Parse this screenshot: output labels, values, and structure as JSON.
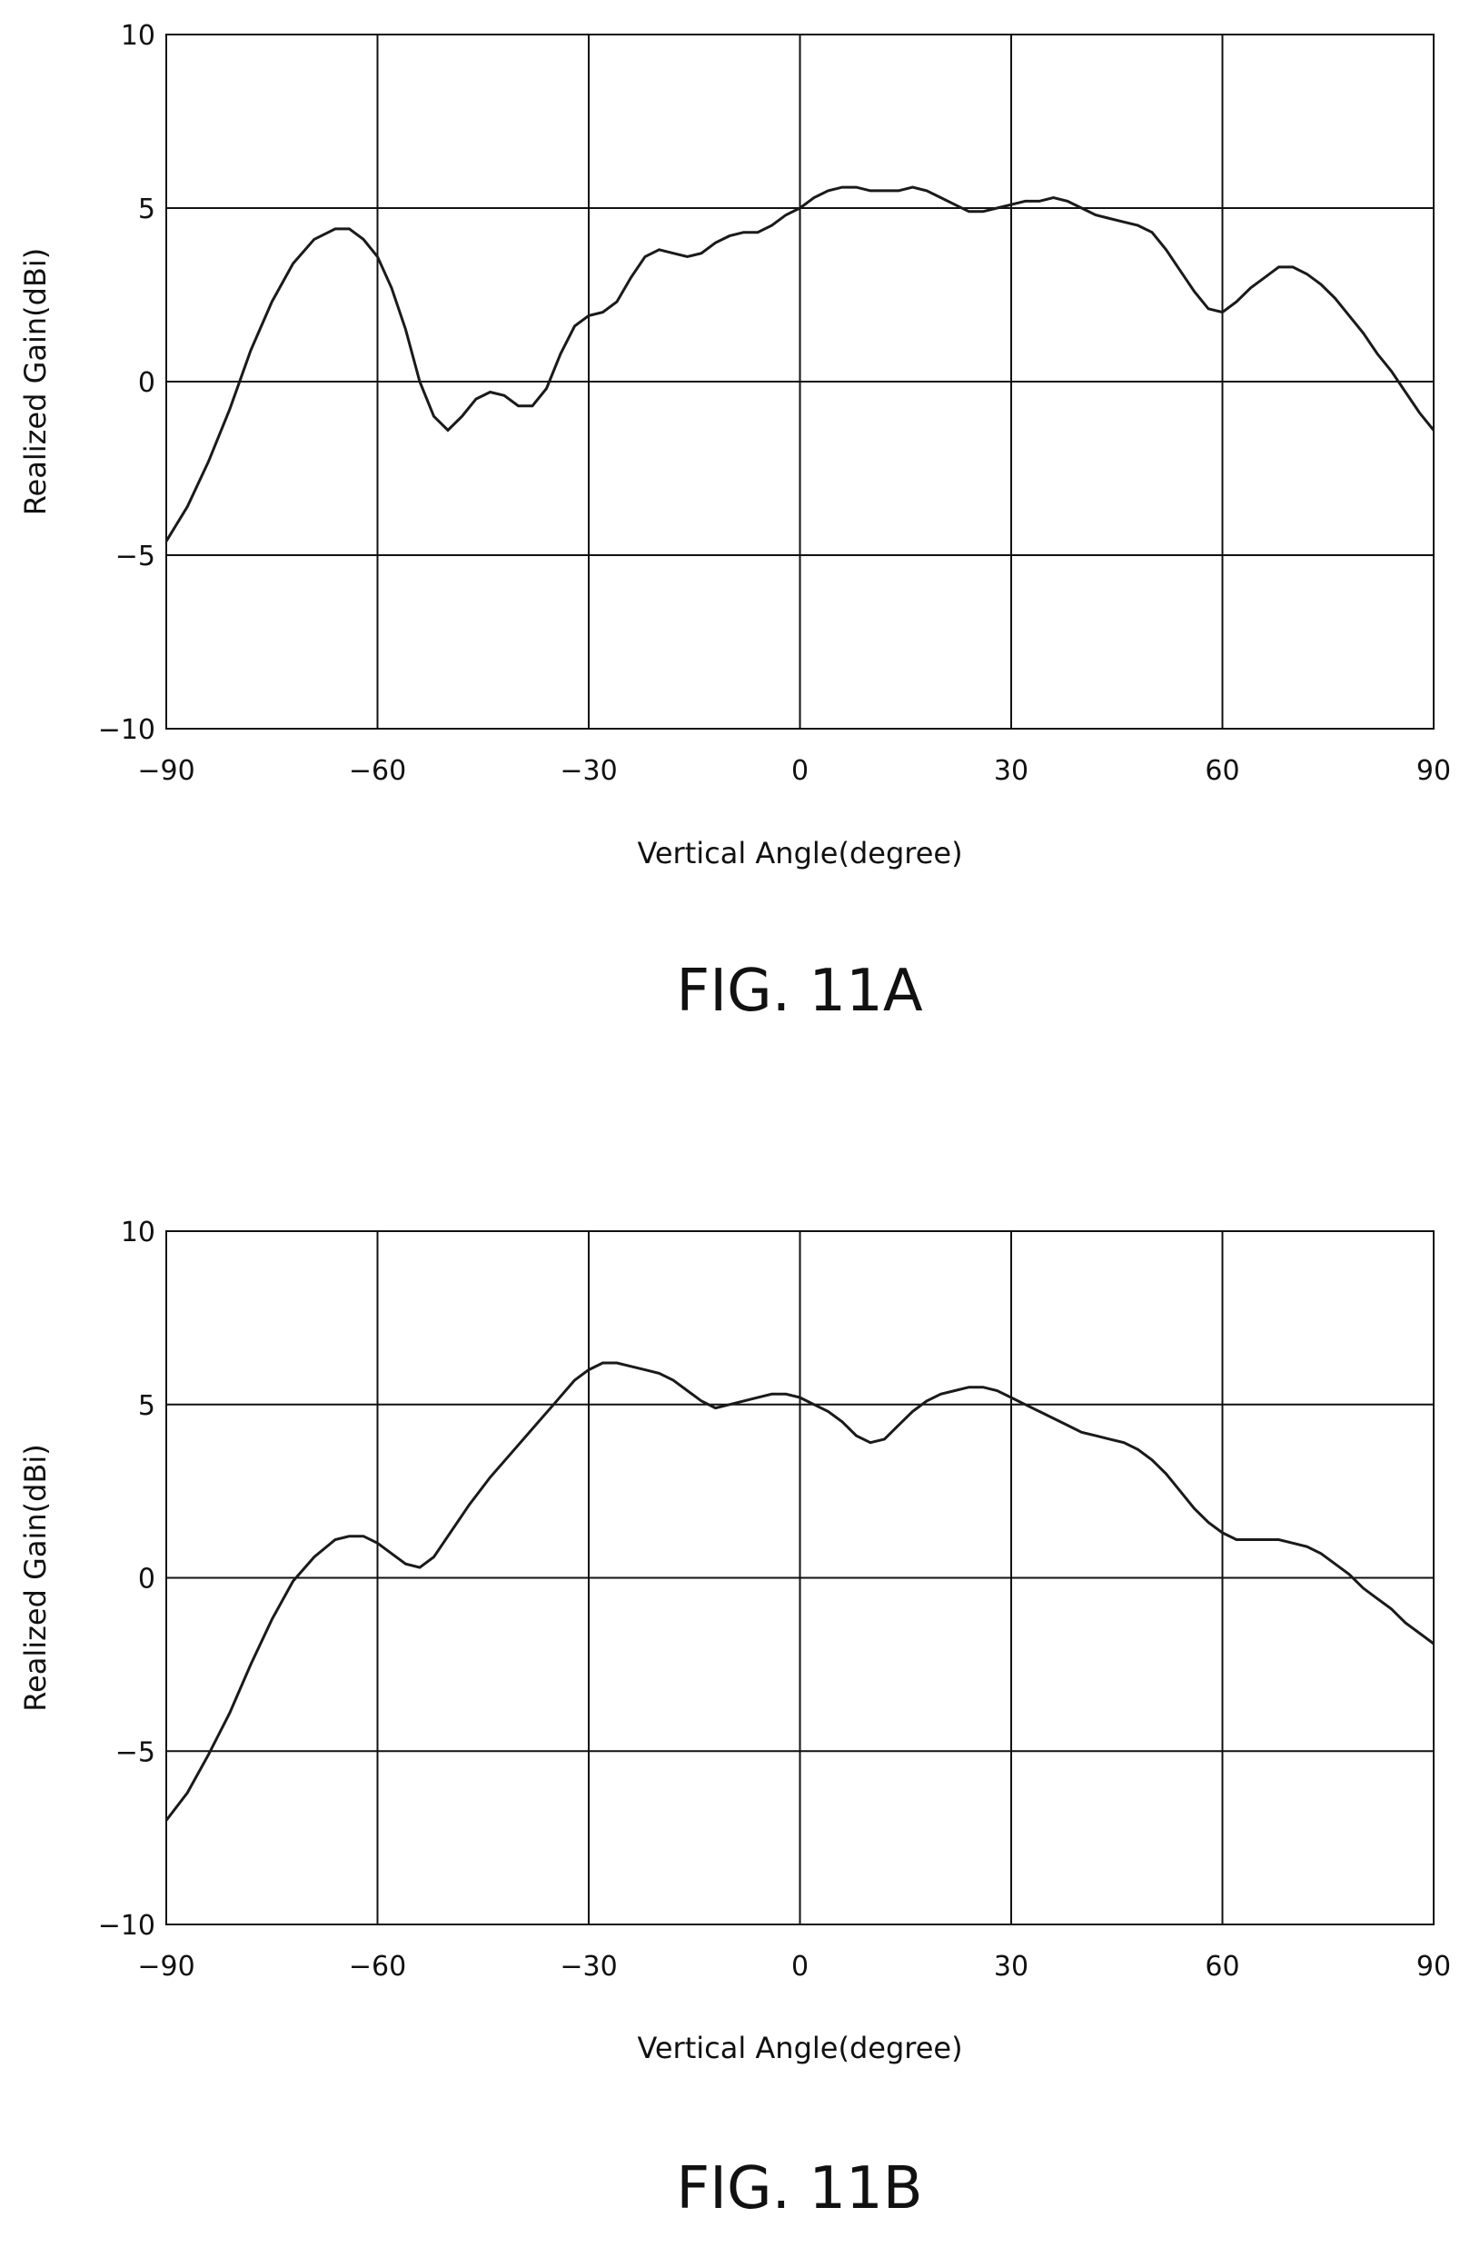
{
  "chart_data": [
    {
      "type": "line",
      "caption": "FIG. 11A",
      "xlabel": "Vertical Angle(degree)",
      "ylabel": "Realized Gain(dBi)",
      "xlim": [
        -90,
        90
      ],
      "ylim": [
        -10,
        10
      ],
      "xticks": [
        "−90",
        "−60",
        "−30",
        "0",
        "30",
        "60",
        "90"
      ],
      "yticks": [
        "10",
        "5",
        "0",
        "−5",
        "−10"
      ],
      "grid": true,
      "series": [
        {
          "x": [
            -90,
            -87,
            -84,
            -81,
            -78,
            -75,
            -72,
            -69,
            -66,
            -64,
            -62,
            -60,
            -58,
            -56,
            -54,
            -52,
            -50,
            -48,
            -46,
            -44,
            -42,
            -40,
            -38,
            -36,
            -34,
            -32,
            -30,
            -28,
            -26,
            -24,
            -22,
            -20,
            -18,
            -16,
            -14,
            -12,
            -10,
            -8,
            -6,
            -4,
            -2,
            0,
            2,
            4,
            6,
            8,
            10,
            12,
            14,
            16,
            18,
            20,
            22,
            24,
            26,
            28,
            30,
            32,
            34,
            36,
            38,
            40,
            42,
            44,
            46,
            48,
            50,
            52,
            54,
            56,
            58,
            60,
            62,
            64,
            66,
            68,
            70,
            72,
            74,
            76,
            78,
            80,
            82,
            84,
            86,
            88,
            90
          ],
          "y": [
            -4.6,
            -3.6,
            -2.3,
            -0.8,
            0.9,
            2.3,
            3.4,
            4.1,
            4.4,
            4.4,
            4.1,
            3.6,
            2.7,
            1.5,
            0.0,
            -1.0,
            -1.4,
            -1.0,
            -0.5,
            -0.3,
            -0.4,
            -0.7,
            -0.7,
            -0.2,
            0.8,
            1.6,
            1.9,
            2.0,
            2.3,
            3.0,
            3.6,
            3.8,
            3.7,
            3.6,
            3.7,
            4.0,
            4.2,
            4.3,
            4.3,
            4.5,
            4.8,
            5.0,
            5.3,
            5.5,
            5.6,
            5.6,
            5.5,
            5.5,
            5.5,
            5.6,
            5.5,
            5.3,
            5.1,
            4.9,
            4.9,
            5.0,
            5.1,
            5.2,
            5.2,
            5.3,
            5.2,
            5.0,
            4.8,
            4.7,
            4.6,
            4.5,
            4.3,
            3.8,
            3.2,
            2.6,
            2.1,
            2.0,
            2.3,
            2.7,
            3.0,
            3.3,
            3.3,
            3.1,
            2.8,
            2.4,
            1.9,
            1.4,
            0.8,
            0.3,
            -0.3,
            -0.9,
            -1.4
          ]
        }
      ]
    },
    {
      "type": "line",
      "caption": "FIG. 11B",
      "xlabel": "Vertical Angle(degree)",
      "ylabel": "Realized Gain(dBi)",
      "xlim": [
        -90,
        90
      ],
      "ylim": [
        -10,
        10
      ],
      "xticks": [
        "−90",
        "−60",
        "−30",
        "0",
        "30",
        "60",
        "90"
      ],
      "yticks": [
        "10",
        "5",
        "0",
        "−5",
        "−10"
      ],
      "grid": true,
      "series": [
        {
          "x": [
            -90,
            -87,
            -84,
            -81,
            -78,
            -75,
            -72,
            -69,
            -66,
            -64,
            -62,
            -60,
            -58,
            -56,
            -54,
            -52,
            -50,
            -47,
            -44,
            -41,
            -38,
            -35,
            -32,
            -30,
            -28,
            -26,
            -24,
            -22,
            -20,
            -18,
            -16,
            -14,
            -12,
            -10,
            -8,
            -6,
            -4,
            -2,
            0,
            2,
            4,
            6,
            8,
            10,
            12,
            14,
            16,
            18,
            20,
            22,
            24,
            26,
            28,
            30,
            32,
            34,
            36,
            38,
            40,
            42,
            44,
            46,
            48,
            50,
            52,
            54,
            56,
            58,
            60,
            62,
            64,
            66,
            68,
            70,
            72,
            74,
            76,
            78,
            80,
            82,
            84,
            86,
            88,
            90
          ],
          "y": [
            -7.0,
            -6.2,
            -5.1,
            -3.9,
            -2.5,
            -1.2,
            -0.1,
            0.6,
            1.1,
            1.2,
            1.2,
            1.0,
            0.7,
            0.4,
            0.3,
            0.6,
            1.2,
            2.1,
            2.9,
            3.6,
            4.3,
            5.0,
            5.7,
            6.0,
            6.2,
            6.2,
            6.1,
            6.0,
            5.9,
            5.7,
            5.4,
            5.1,
            4.9,
            5.0,
            5.1,
            5.2,
            5.3,
            5.3,
            5.2,
            5.0,
            4.8,
            4.5,
            4.1,
            3.9,
            4.0,
            4.4,
            4.8,
            5.1,
            5.3,
            5.4,
            5.5,
            5.5,
            5.4,
            5.2,
            5.0,
            4.8,
            4.6,
            4.4,
            4.2,
            4.1,
            4.0,
            3.9,
            3.7,
            3.4,
            3.0,
            2.5,
            2.0,
            1.6,
            1.3,
            1.1,
            1.1,
            1.1,
            1.1,
            1.0,
            0.9,
            0.7,
            0.4,
            0.1,
            -0.3,
            -0.6,
            -0.9,
            -1.3,
            -1.6,
            -1.9
          ]
        }
      ]
    }
  ]
}
